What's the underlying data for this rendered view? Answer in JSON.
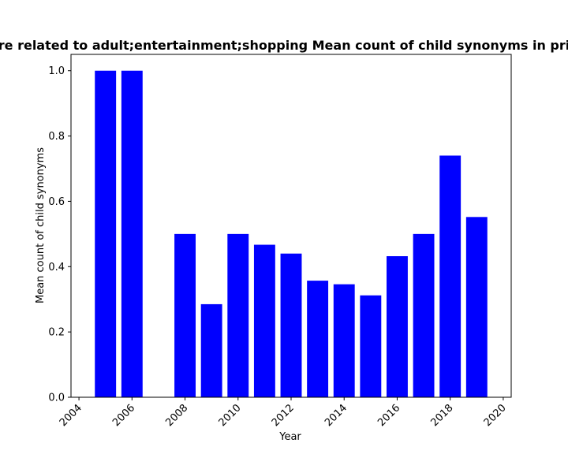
{
  "chart_data": {
    "type": "bar",
    "title": "re related to adult;entertainment;shopping Mean count of child synonyms in pri",
    "xlabel": "Year",
    "ylabel": "Mean count of child synonyms",
    "x": [
      2005,
      2006,
      2008,
      2009,
      2010,
      2011,
      2012,
      2013,
      2014,
      2015,
      2016,
      2017,
      2018,
      2019
    ],
    "values": [
      1.0,
      1.0,
      0.5,
      0.285,
      0.5,
      0.467,
      0.44,
      0.357,
      0.346,
      0.312,
      0.432,
      0.5,
      0.74,
      0.552
    ],
    "xlim": [
      2003.7,
      2020.3
    ],
    "ylim": [
      0,
      1.05
    ],
    "xticks": [
      2004,
      2006,
      2008,
      2010,
      2012,
      2014,
      2016,
      2018,
      2020
    ],
    "yticks": [
      0.0,
      0.2,
      0.4,
      0.6,
      0.8,
      1.0
    ],
    "xtick_labels": [
      "2004",
      "2006",
      "2008",
      "2010",
      "2012",
      "2014",
      "2016",
      "2018",
      "2020"
    ],
    "ytick_labels": [
      "0.0",
      "0.2",
      "0.4",
      "0.6",
      "0.8",
      "1.0"
    ],
    "bar_color": "#0000ff",
    "grid": false,
    "legend": "none"
  }
}
